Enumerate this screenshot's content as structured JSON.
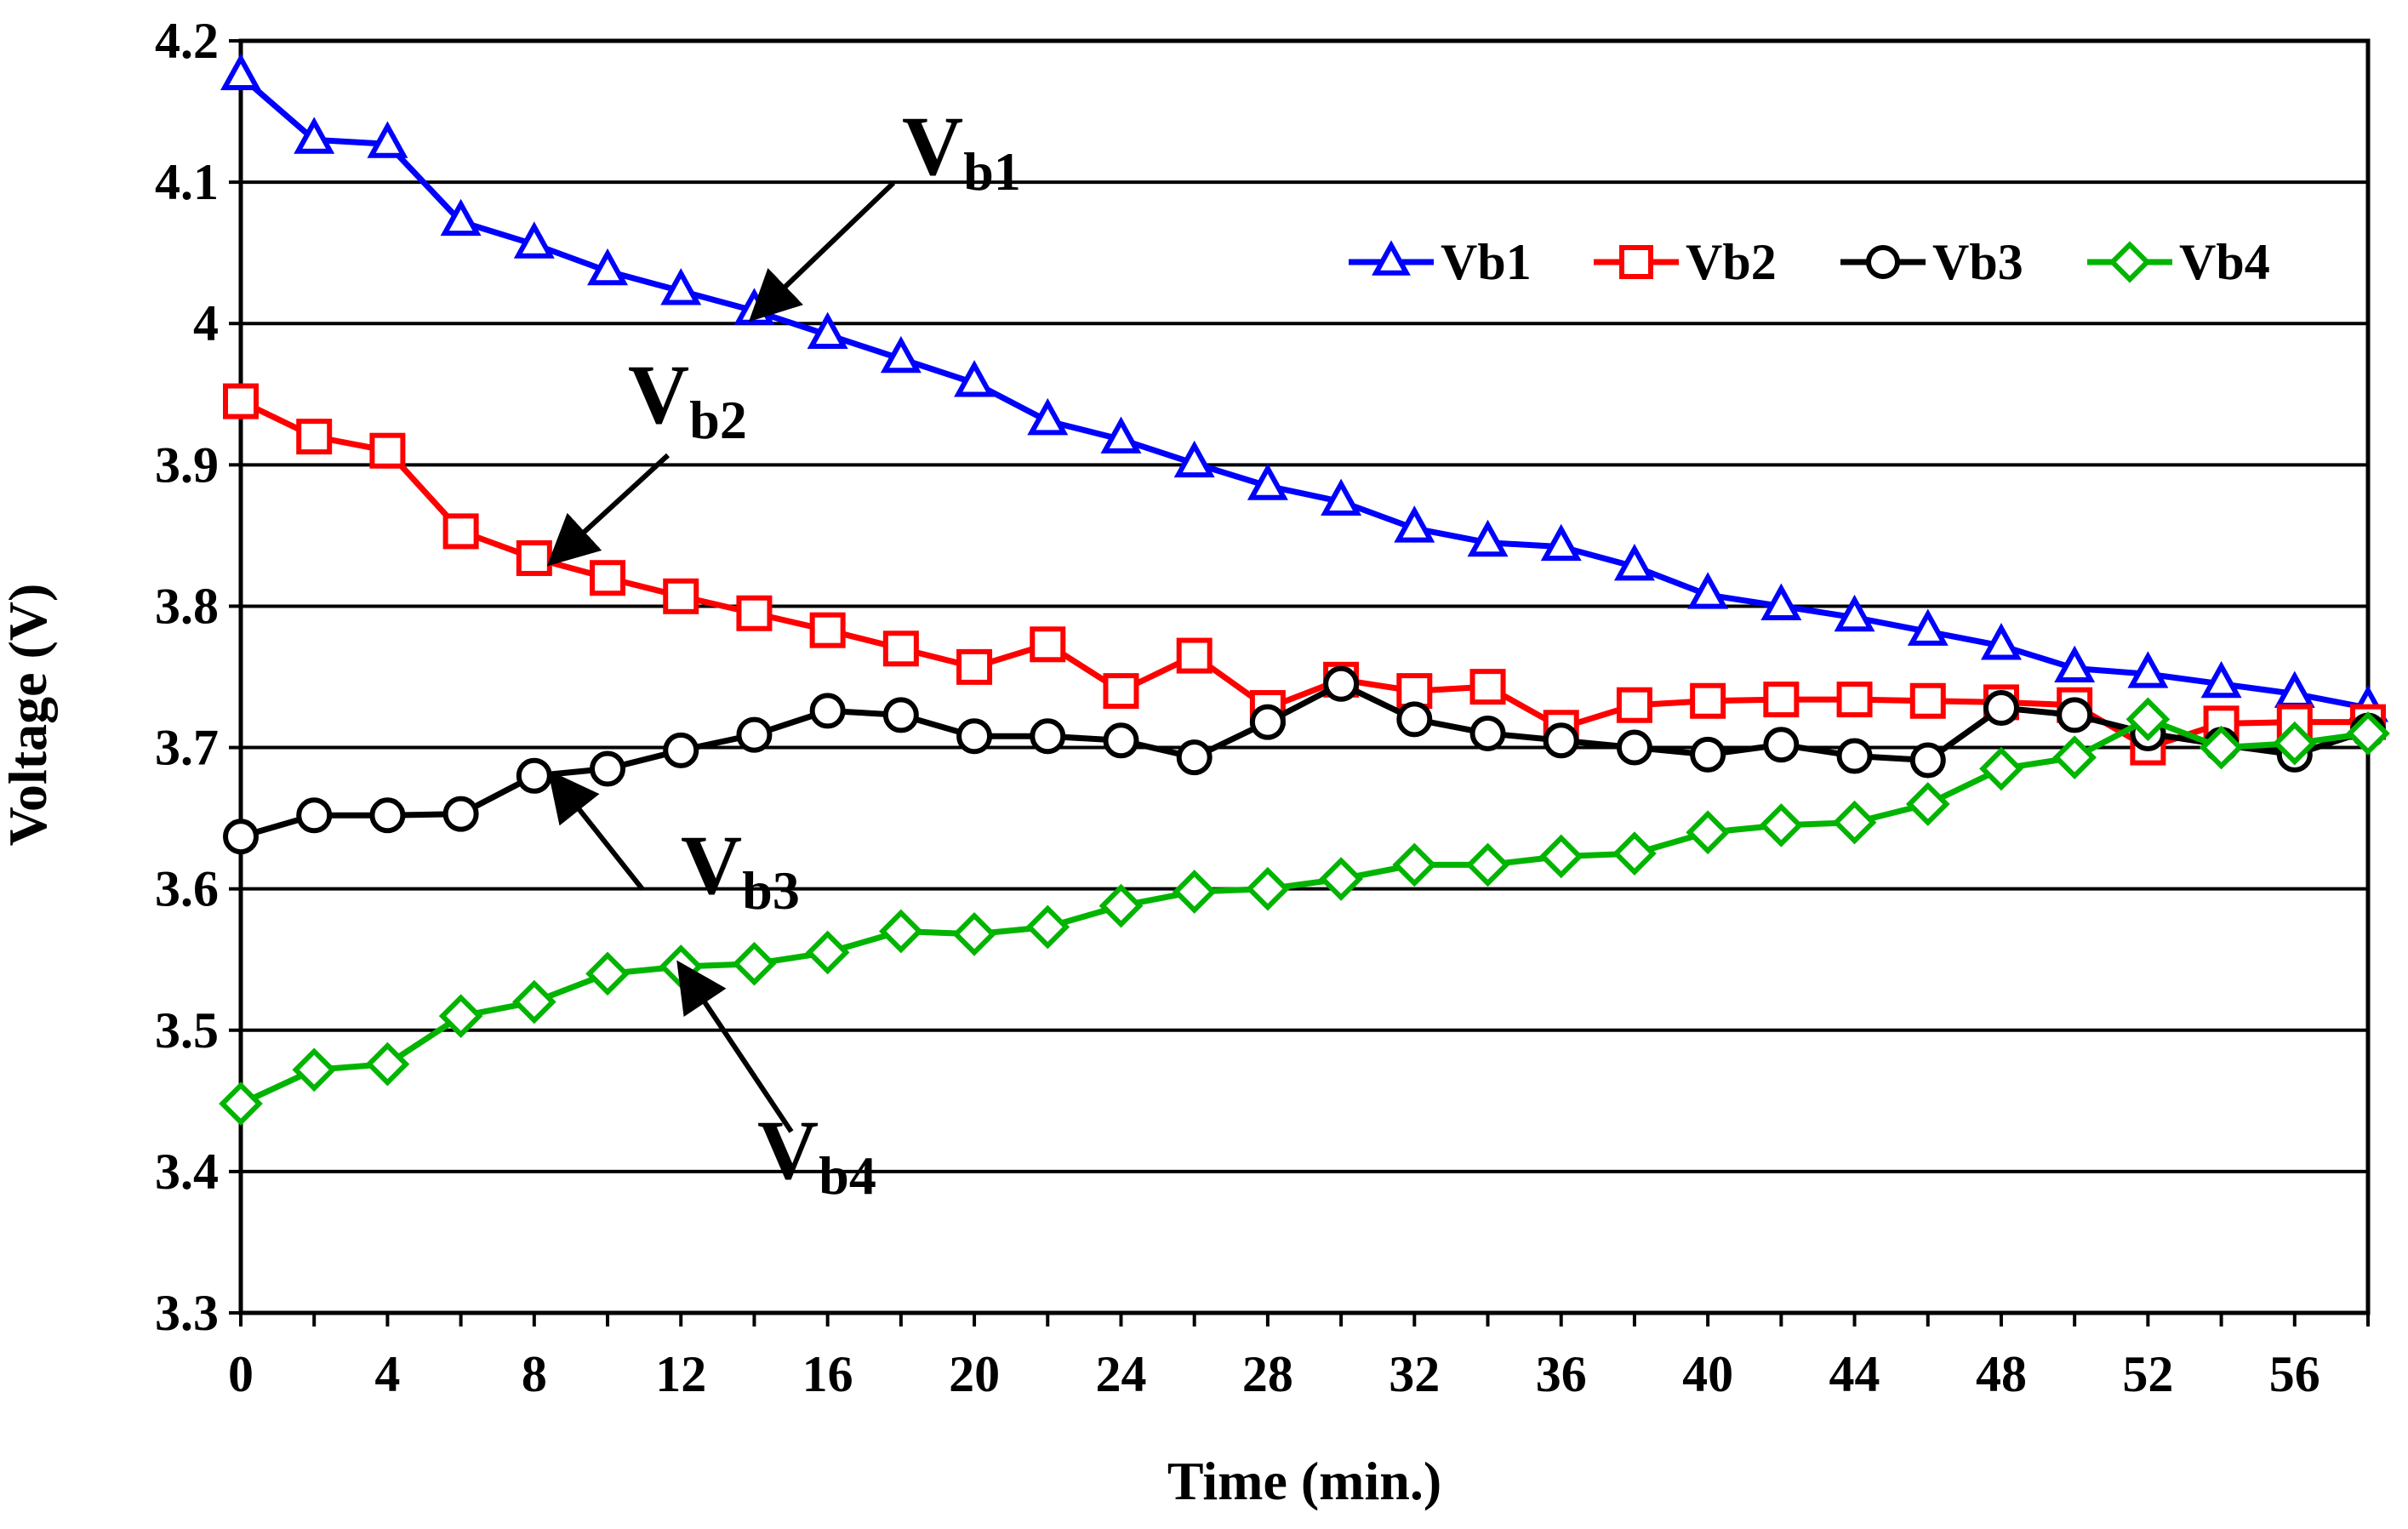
{
  "chart_data": {
    "type": "line",
    "title": "",
    "xlabel": "Time (min.)",
    "ylabel": "Voltage (V)",
    "xlim": [
      0,
      58
    ],
    "ylim": [
      3.3,
      4.2
    ],
    "xticks": [
      0,
      4,
      8,
      12,
      16,
      20,
      24,
      28,
      32,
      36,
      40,
      44,
      48,
      52,
      56
    ],
    "yticks": [
      3.3,
      3.4,
      3.5,
      3.6,
      3.7,
      3.8,
      3.9,
      4,
      4.1,
      4.2
    ],
    "grid": "horizontal",
    "legend_position": "top-right",
    "x": [
      0,
      2,
      4,
      6,
      8,
      10,
      12,
      14,
      16,
      18,
      20,
      22,
      24,
      26,
      28,
      30,
      32,
      34,
      36,
      38,
      40,
      42,
      44,
      46,
      48,
      50,
      52,
      54,
      56,
      58
    ],
    "series": [
      {
        "name": "Vb1",
        "color": "#0000ff",
        "marker": "triangle",
        "values": [
          4.175,
          4.13,
          4.127,
          4.072,
          4.056,
          4.037,
          4.023,
          4.009,
          3.992,
          3.975,
          3.958,
          3.931,
          3.918,
          3.901,
          3.885,
          3.874,
          3.855,
          3.845,
          3.842,
          3.828,
          3.808,
          3.8,
          3.792,
          3.782,
          3.772,
          3.756,
          3.752,
          3.745,
          3.738,
          3.728
        ]
      },
      {
        "name": "Vb2",
        "color": "#ff0000",
        "marker": "square",
        "values": [
          3.945,
          3.92,
          3.91,
          3.853,
          3.834,
          3.82,
          3.807,
          3.795,
          3.783,
          3.77,
          3.757,
          3.773,
          3.74,
          3.765,
          3.728,
          3.748,
          3.74,
          3.743,
          3.714,
          3.73,
          3.733,
          3.734,
          3.734,
          3.733,
          3.732,
          3.73,
          3.7,
          3.717,
          3.718,
          3.718
        ]
      },
      {
        "name": "Vb3",
        "color": "#000000",
        "marker": "circle",
        "values": [
          3.637,
          3.652,
          3.652,
          3.653,
          3.68,
          3.685,
          3.698,
          3.709,
          3.726,
          3.723,
          3.708,
          3.708,
          3.705,
          3.693,
          3.718,
          3.745,
          3.72,
          3.71,
          3.705,
          3.7,
          3.695,
          3.702,
          3.694,
          3.691,
          3.728,
          3.723,
          3.71,
          3.702,
          3.695,
          3.712
        ]
      },
      {
        "name": "Vb4",
        "color": "#00b400",
        "marker": "diamond",
        "values": [
          3.448,
          3.472,
          3.476,
          3.51,
          3.52,
          3.54,
          3.545,
          3.547,
          3.555,
          3.57,
          3.568,
          3.573,
          3.588,
          3.598,
          3.6,
          3.607,
          3.617,
          3.617,
          3.623,
          3.625,
          3.64,
          3.645,
          3.647,
          3.66,
          3.685,
          3.693,
          3.72,
          3.7,
          3.703,
          3.71
        ]
      }
    ],
    "annotations": [
      {
        "base": "V",
        "sub": "b1",
        "series": "Vb1",
        "point_x": 14,
        "point_y": 4.005
      },
      {
        "base": "V",
        "sub": "b2",
        "series": "Vb2",
        "point_x": 8.5,
        "point_y": 3.832
      },
      {
        "base": "V",
        "sub": "b3",
        "series": "Vb3",
        "point_x": 8.5,
        "point_y": 3.68
      },
      {
        "base": "V",
        "sub": "b4",
        "series": "Vb4",
        "point_x": 12,
        "point_y": 3.545
      }
    ]
  }
}
